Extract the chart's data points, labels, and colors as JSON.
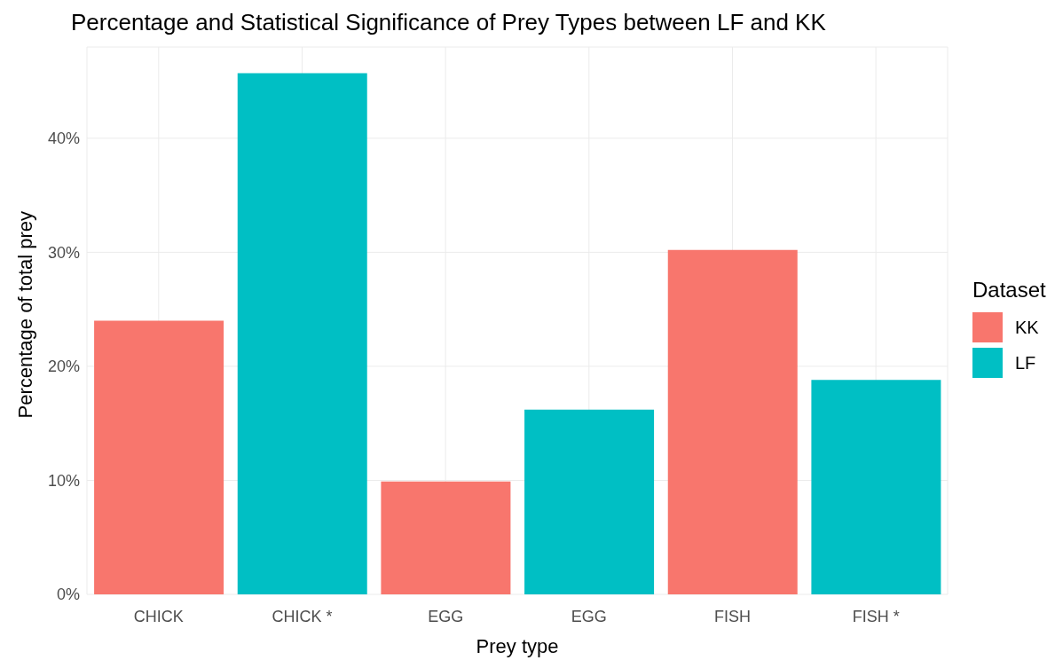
{
  "chart_data": {
    "type": "bar",
    "title": "Percentage and Statistical Significance of Prey Types between LF and KK",
    "xlabel": "Prey type",
    "ylabel": "Percentage of total prey",
    "legend_title": "Dataset",
    "legend": "right",
    "grid": true,
    "categories": [
      "CHICK",
      "CHICK *",
      "EGG",
      "EGG",
      "FISH",
      "FISH *"
    ],
    "series": [
      {
        "name": "KK",
        "color": "#f8766d",
        "values": [
          24.0,
          null,
          9.9,
          null,
          30.2,
          null
        ]
      },
      {
        "name": "LF",
        "color": "#00bfc4",
        "values": [
          null,
          45.7,
          null,
          16.2,
          null,
          18.8
        ]
      }
    ],
    "ylim": [
      0,
      48
    ],
    "yticks": [
      {
        "value": 0,
        "label": "0%"
      },
      {
        "value": 10,
        "label": "10%"
      },
      {
        "value": 20,
        "label": "20%"
      },
      {
        "value": 30,
        "label": "30%"
      },
      {
        "value": 40,
        "label": "40%"
      }
    ]
  }
}
